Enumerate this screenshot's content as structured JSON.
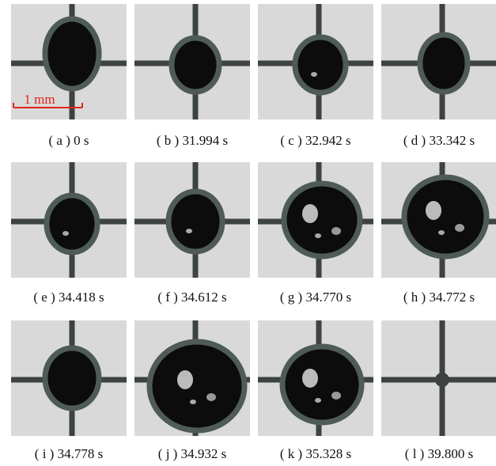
{
  "panels": [
    {
      "caption": "( a ) 0 s"
    },
    {
      "caption": "( b ) 31.994 s"
    },
    {
      "caption": "( c ) 32.942 s"
    },
    {
      "caption": "( d ) 33.342 s"
    },
    {
      "caption": "( e ) 34.418 s"
    },
    {
      "caption": "( f ) 34.612 s"
    },
    {
      "caption": "( g ) 34.770 s"
    },
    {
      "caption": "( h ) 34.772 s"
    },
    {
      "caption": "( i ) 34.778 s"
    },
    {
      "caption": "( j ) 34.932 s"
    },
    {
      "caption": "( k ) 35.328 s"
    },
    {
      "caption": "( l ) 39.800 s"
    }
  ],
  "scale_bar": {
    "label": "1 mm"
  }
}
